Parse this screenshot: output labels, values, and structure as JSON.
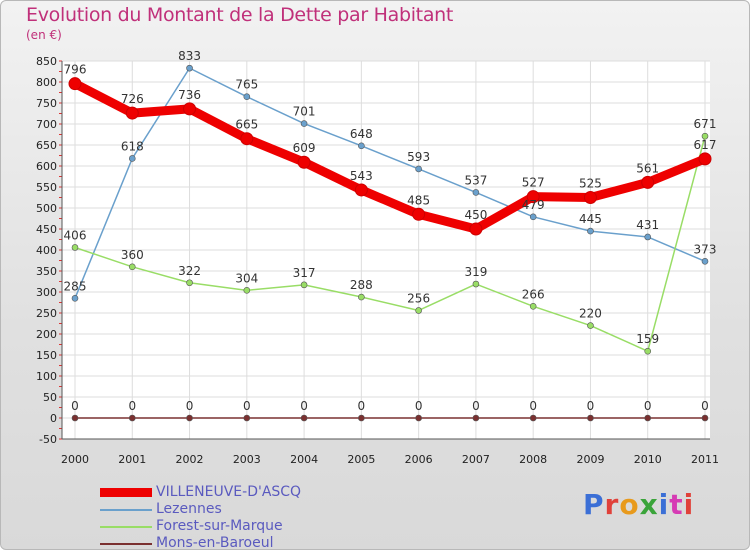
{
  "title": "Evolution du Montant de la Dette par Habitant",
  "unit": "(en €)",
  "logo": {
    "text": "Proxiti",
    "colors": [
      "#3b6fd6",
      "#e0413a",
      "#e89a1c",
      "#3aa43a",
      "#3b6fd6",
      "#d63bb4",
      "#e0413a"
    ]
  },
  "chart_data": {
    "type": "line",
    "x": [
      "2000",
      "2001",
      "2002",
      "2003",
      "2004",
      "2005",
      "2006",
      "2007",
      "2008",
      "2009",
      "2010",
      "2011"
    ],
    "ylim": [
      -50,
      850
    ],
    "yticks": [
      -50,
      0,
      50,
      100,
      150,
      200,
      250,
      300,
      350,
      400,
      450,
      500,
      550,
      600,
      650,
      700,
      750,
      800,
      850
    ],
    "grid": true,
    "legend": "bottom-left",
    "series": [
      {
        "name": "VILLENEUVE-D'ASCQ",
        "color": "#ee0000",
        "thick": true,
        "values": [
          796,
          726,
          736,
          665,
          609,
          543,
          485,
          450,
          527,
          525,
          561,
          617
        ]
      },
      {
        "name": "Lezennes",
        "color": "#6aa0cc",
        "thick": false,
        "values": [
          285,
          618,
          833,
          765,
          701,
          648,
          593,
          537,
          479,
          445,
          431,
          373
        ]
      },
      {
        "name": "Forest-sur-Marque",
        "color": "#99dd66",
        "thick": false,
        "values": [
          406,
          360,
          322,
          304,
          317,
          288,
          256,
          319,
          266,
          220,
          159,
          671
        ]
      },
      {
        "name": "Mons-en-Baroeul",
        "color": "#7a3030",
        "thick": false,
        "values": [
          0,
          0,
          0,
          0,
          0,
          0,
          0,
          0,
          0,
          0,
          0,
          0
        ]
      }
    ]
  }
}
